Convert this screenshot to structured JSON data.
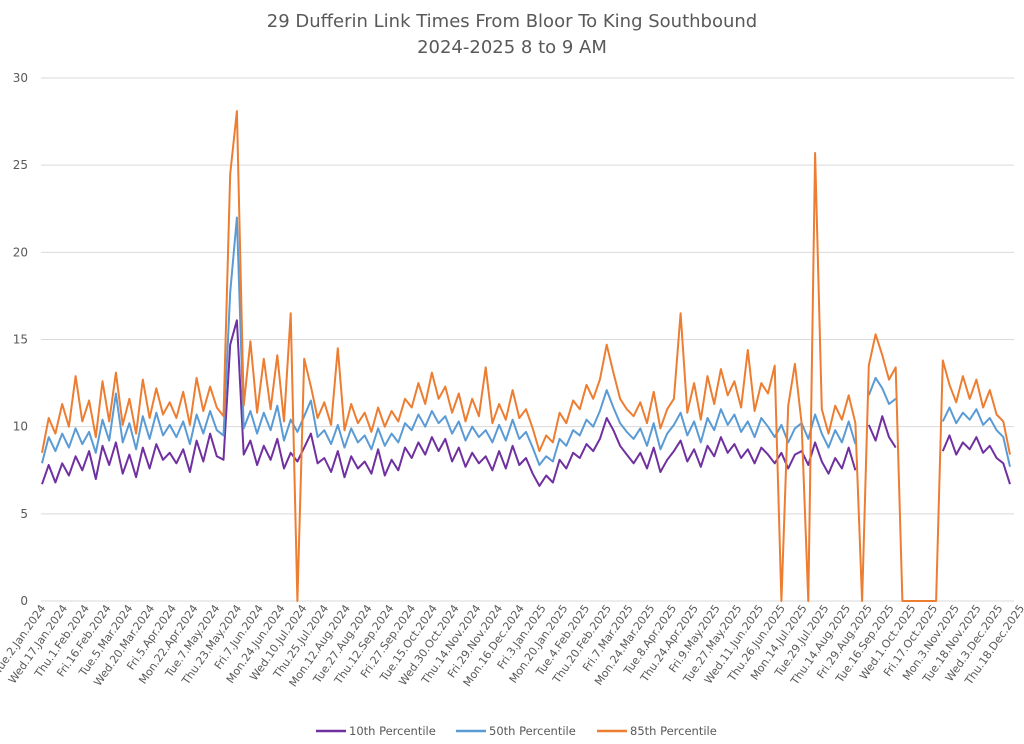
{
  "chart_data": {
    "type": "line",
    "title": [
      "29 Dufferin Link Times From Bloor To King Southbound",
      "2024-2025 8 to 9 AM"
    ],
    "xlabel": "",
    "ylabel": "",
    "ylim": [
      0,
      30
    ],
    "yticks": [
      0,
      5,
      10,
      15,
      20,
      25,
      30
    ],
    "grid": true,
    "legend_position": "bottom",
    "x_tick_labels": [
      "Tue.2.Jan.2024",
      "Wed.17.Jan.2024",
      "Thu.1.Feb.2024",
      "Fri.16.Feb.2024",
      "Tue.5.Mar.2024",
      "Wed.20.Mar.2024",
      "Fri.5.Apr.2024",
      "Mon.22.Apr.2024",
      "Tue.7.May.2024",
      "Thu.23.May.2024",
      "Fri.7.Jun.2024",
      "Mon.24.Jun.2024",
      "Wed.10.Jul.2024",
      "Thu.25.Jul.2024",
      "Mon.12.Aug.2024",
      "Tue.27.Aug.2024",
      "Thu.12.Sep.2024",
      "Fri.27.Sep.2024",
      "Tue.15.Oct.2024",
      "Wed.30.Oct.2024",
      "Thu.14.Nov.2024",
      "Fri.29.Nov.2024",
      "Mon.16.Dec.2024",
      "Fri.3.Jan.2025",
      "Mon.20.Jan.2025",
      "Tue.4.Feb.2025",
      "Thu.20.Feb.2025",
      "Fri.7.Mar.2025",
      "Mon.24.Mar.2025",
      "Tue.8.Apr.2025",
      "Thu.24.Apr.2025",
      "Fri.9.May.2025",
      "Tue.27.May.2025",
      "Wed.11.Jun.2025",
      "Thu.26.Jun.2025",
      "Mon.14.Jul.2025",
      "Tue.29.Jul.2025",
      "Thu.14.Aug.2025",
      "Fri.29.Aug.2025",
      "Tue.16.Sep.2025",
      "Wed.1.Oct.2025",
      "Fri.17.Oct.2025",
      "Mon.3.Nov.2025",
      "Tue.18.Nov.2025",
      "Wed.3.Dec.2025",
      "Thu.18.Dec.2025"
    ],
    "series": [
      {
        "name": "10th Percentile",
        "color": "#7030A0",
        "values": [
          6.7,
          7.8,
          6.8,
          7.9,
          7.2,
          8.3,
          7.5,
          8.6,
          7.0,
          8.9,
          7.8,
          9.1,
          7.3,
          8.4,
          7.1,
          8.8,
          7.6,
          9.0,
          8.1,
          8.5,
          7.9,
          8.7,
          7.4,
          9.2,
          8.0,
          9.6,
          8.3,
          8.1,
          14.7,
          16.1,
          8.4,
          9.2,
          7.8,
          8.9,
          8.1,
          9.3,
          7.6,
          8.5,
          8.0,
          8.8,
          9.6,
          7.9,
          8.2,
          7.4,
          8.6,
          7.1,
          8.3,
          7.6,
          8.0,
          7.3,
          8.7,
          7.2,
          8.1,
          7.5,
          8.8,
          8.2,
          9.1,
          8.4,
          9.4,
          8.6,
          9.3,
          8.0,
          8.8,
          7.7,
          8.5,
          7.9,
          8.3,
          7.5,
          8.6,
          7.6,
          8.9,
          7.8,
          8.2,
          7.3,
          6.6,
          7.2,
          6.8,
          8.1,
          7.6,
          8.5,
          8.2,
          9.0,
          8.6,
          9.3,
          10.5,
          9.8,
          8.9,
          8.4,
          7.9,
          8.5,
          7.6,
          8.8,
          7.4,
          8.1,
          8.6,
          9.2,
          8.0,
          8.7,
          7.7,
          8.9,
          8.3,
          9.4,
          8.5,
          9.0,
          8.2,
          8.7,
          7.9,
          8.8,
          8.4,
          7.9,
          8.5,
          7.6,
          8.4,
          8.6,
          7.8,
          9.1,
          8.0,
          7.3,
          8.2,
          7.6,
          8.8,
          7.5,
          null,
          10.1,
          9.2,
          10.6,
          9.4,
          8.8,
          null,
          null,
          null,
          null,
          null,
          null,
          8.6,
          9.5,
          8.4,
          9.1,
          8.7,
          9.4,
          8.5,
          8.9,
          8.2,
          7.9,
          6.7
        ]
      },
      {
        "name": "50th Percentile",
        "color": "#5B9BD5",
        "values": [
          7.9,
          9.4,
          8.6,
          9.6,
          8.8,
          9.9,
          9.0,
          9.7,
          8.5,
          10.4,
          9.2,
          11.9,
          9.1,
          10.2,
          8.7,
          10.6,
          9.3,
          10.8,
          9.5,
          10.1,
          9.4,
          10.3,
          9.0,
          10.7,
          9.6,
          10.9,
          9.8,
          9.5,
          17.7,
          22.0,
          9.9,
          10.9,
          9.6,
          10.8,
          9.8,
          11.2,
          9.2,
          10.4,
          9.7,
          10.6,
          11.5,
          9.4,
          9.8,
          9.0,
          10.1,
          8.8,
          9.9,
          9.1,
          9.5,
          8.7,
          9.9,
          8.9,
          9.6,
          9.1,
          10.2,
          9.8,
          10.7,
          10.0,
          10.9,
          10.2,
          10.6,
          9.6,
          10.3,
          9.2,
          10.0,
          9.4,
          9.8,
          9.1,
          10.1,
          9.2,
          10.4,
          9.3,
          9.7,
          8.8,
          7.8,
          8.3,
          8.0,
          9.3,
          8.9,
          9.8,
          9.5,
          10.4,
          10.0,
          10.9,
          12.1,
          11.1,
          10.2,
          9.7,
          9.3,
          9.9,
          8.9,
          10.2,
          8.7,
          9.6,
          10.1,
          10.8,
          9.5,
          10.3,
          9.1,
          10.5,
          9.8,
          11.0,
          10.1,
          10.7,
          9.7,
          10.3,
          9.4,
          10.5,
          10.0,
          9.4,
          10.1,
          9.1,
          9.9,
          10.2,
          9.3,
          10.7,
          9.6,
          8.8,
          9.8,
          9.1,
          10.3,
          9.0,
          null,
          11.8,
          12.8,
          12.2,
          11.3,
          11.6,
          null,
          null,
          null,
          null,
          null,
          null,
          10.3,
          11.1,
          10.2,
          10.8,
          10.4,
          11.0,
          10.1,
          10.5,
          9.8,
          9.4,
          7.7
        ]
      },
      {
        "name": "85th Percentile",
        "color": "#ED7D31",
        "values": [
          8.5,
          10.5,
          9.6,
          11.3,
          10.0,
          12.9,
          10.3,
          11.5,
          9.4,
          12.6,
          10.3,
          13.1,
          10.1,
          11.6,
          9.6,
          12.7,
          10.5,
          12.2,
          10.7,
          11.4,
          10.5,
          12.0,
          10.1,
          12.8,
          10.9,
          12.3,
          11.1,
          10.6,
          24.5,
          28.1,
          11.2,
          14.9,
          10.8,
          13.9,
          11.0,
          14.1,
          10.3,
          16.5,
          0.0,
          13.9,
          12.3,
          10.5,
          11.4,
          10.1,
          14.5,
          9.8,
          11.3,
          10.2,
          10.8,
          9.7,
          11.1,
          10.0,
          10.9,
          10.3,
          11.6,
          11.1,
          12.5,
          11.3,
          13.1,
          11.6,
          12.3,
          10.8,
          11.9,
          10.3,
          11.6,
          10.6,
          13.4,
          10.2,
          11.3,
          10.4,
          12.1,
          10.5,
          11.0,
          9.9,
          8.6,
          9.5,
          9.1,
          10.8,
          10.2,
          11.5,
          11.0,
          12.4,
          11.6,
          12.7,
          14.7,
          13.1,
          11.6,
          11.0,
          10.6,
          11.4,
          10.2,
          12.0,
          9.9,
          11.0,
          11.6,
          16.5,
          10.8,
          12.5,
          10.4,
          12.9,
          11.3,
          13.3,
          11.8,
          12.6,
          11.1,
          14.4,
          10.9,
          12.5,
          11.9,
          13.5,
          0.0,
          11.2,
          13.6,
          10.2,
          0.0,
          25.7,
          11.0,
          9.6,
          11.2,
          10.4,
          11.8,
          10.2,
          0.0,
          13.5,
          15.3,
          14.1,
          12.7,
          13.4,
          0.0,
          0.0,
          0.0,
          0.0,
          0.0,
          0.0,
          13.8,
          12.4,
          11.4,
          12.9,
          11.6,
          12.7,
          11.1,
          12.1,
          10.7,
          10.3,
          8.4
        ]
      }
    ]
  }
}
